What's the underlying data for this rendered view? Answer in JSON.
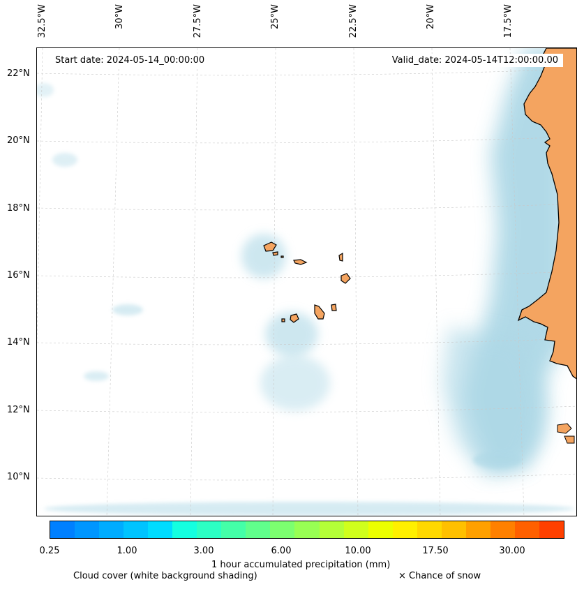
{
  "map": {
    "start_label": "Start date: 2024-05-14_00:00:00",
    "valid_label": "Valid_date: 2024-05-14T12:00:00.00",
    "lon_labels": [
      "32.5°W",
      "30°W",
      "27.5°W",
      "25°W",
      "22.5°W",
      "20°W",
      "17.5°W"
    ],
    "lat_labels": [
      "22°N",
      "20°N",
      "18°N",
      "16°N",
      "14°N",
      "12°N",
      "10°N"
    ],
    "land_color": "#f4a460",
    "cloud_color": "#add8e6",
    "coastline_color": "#000000"
  },
  "colorbar": {
    "colors": [
      "#0080ff",
      "#0096ff",
      "#00acff",
      "#00c4ff",
      "#00dcff",
      "#14ffe0",
      "#2cffc4",
      "#44ffa8",
      "#60ff8c",
      "#7cff70",
      "#98ff54",
      "#b4ff38",
      "#d0ff1c",
      "#ecff00",
      "#fff000",
      "#ffd800",
      "#ffc000",
      "#ffa000",
      "#ff8000",
      "#ff6000",
      "#ff4000"
    ],
    "tick_labels": [
      "0.25",
      "1.00",
      "3.00",
      "6.00",
      "10.00",
      "17.50",
      "30.00"
    ],
    "label": "1 hour accumulated precipitation (mm)"
  },
  "legend": {
    "cloud_note": "Cloud cover (white background shading)",
    "snow_note": "× Chance of snow"
  }
}
